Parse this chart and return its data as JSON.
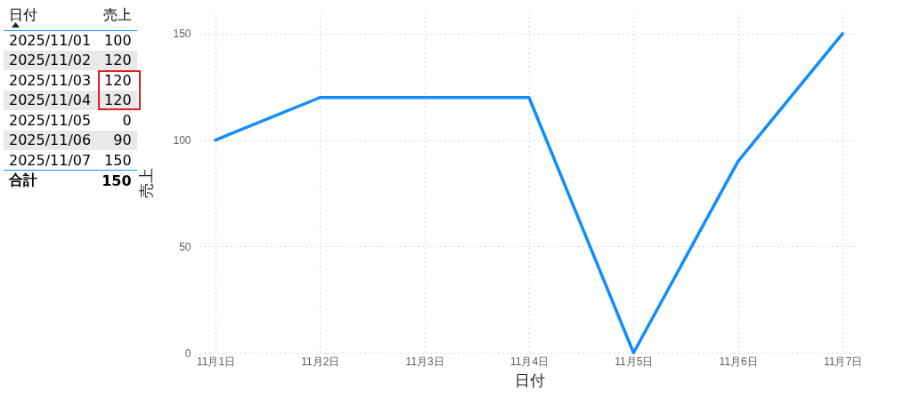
{
  "chart_data": [
    {
      "type": "other",
      "xlabel": "日付",
      "ylabel": "売上",
      "categories": [
        "2025/11/01",
        "2025/11/02",
        "2025/11/03",
        "2025/11/04",
        "2025/11/05",
        "2025/11/06",
        "2025/11/07"
      ],
      "values": [
        100,
        120,
        120,
        120,
        0,
        90,
        150
      ],
      "data_labels": true,
      "annotations": [
        "合計",
        "150"
      ]
    },
    {
      "type": "line",
      "xlabel": "日付",
      "ylabel": "売上",
      "x": [
        "2025-11-01",
        "2025-11-02",
        "2025-11-03",
        "2025-11-04",
        "2025-11-05",
        "2025-11-06",
        "2025-11-07"
      ],
      "series": [
        {
          "color": "#118dff",
          "values": [
            100,
            120,
            120,
            120,
            0,
            90,
            150
          ]
        }
      ],
      "xlim": [
        "2025-11-01",
        "2025-11-07"
      ],
      "xticks": [
        {
          "value": "2025-11-01",
          "label": "11月1日"
        },
        {
          "value": "2025-11-02",
          "label": "11月2日"
        },
        {
          "value": "2025-11-03",
          "label": "11月3日"
        },
        {
          "value": "2025-11-04",
          "label": "11月4日"
        },
        {
          "value": "2025-11-05",
          "label": "11月5日"
        },
        {
          "value": "2025-11-06",
          "label": "11月6日"
        },
        {
          "value": "2025-11-07",
          "label": "11月7日"
        }
      ],
      "ylim": [
        0,
        160
      ],
      "yticks": [
        0,
        50,
        100,
        150
      ],
      "grid": true,
      "legend": false,
      "marker": "none",
      "line_style": "solid"
    }
  ]
}
